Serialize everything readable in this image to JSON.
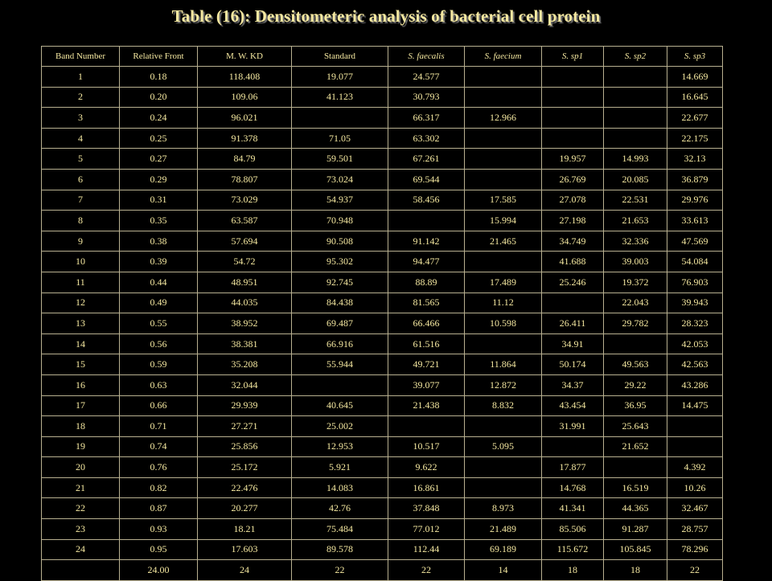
{
  "title": "Table (16): Densitometeric analysis of bacterial cell protein",
  "table": {
    "headers": [
      {
        "label": "Band Number",
        "italic": false
      },
      {
        "label": "Relative Front",
        "italic": false
      },
      {
        "label": "M. W. KD",
        "italic": false
      },
      {
        "label": "Standard",
        "italic": false
      },
      {
        "label": "S. faecalis",
        "italic": true
      },
      {
        "label": "S. faecium",
        "italic": true
      },
      {
        "label": "S. sp1",
        "italic": true
      },
      {
        "label": "S. sp2",
        "italic": true
      },
      {
        "label": "S. sp3",
        "italic": true
      }
    ],
    "rows": [
      [
        "1",
        "0.18",
        "118.408",
        "19.077",
        "24.577",
        "",
        "",
        "",
        "14.669"
      ],
      [
        "2",
        "0.20",
        "109.06",
        "41.123",
        "30.793",
        "",
        "",
        "",
        "16.645"
      ],
      [
        "3",
        "0.24",
        "96.021",
        "",
        "66.317",
        "12.966",
        "",
        "",
        "22.677"
      ],
      [
        "4",
        "0.25",
        "91.378",
        "71.05",
        "63.302",
        "",
        "",
        "",
        "22.175"
      ],
      [
        "5",
        "0.27",
        "84.79",
        "59.501",
        "67.261",
        "",
        "19.957",
        "14.993",
        "32.13"
      ],
      [
        "6",
        "0.29",
        "78.807",
        "73.024",
        "69.544",
        "",
        "26.769",
        "20.085",
        "36.879"
      ],
      [
        "7",
        "0.31",
        "73.029",
        "54.937",
        "58.456",
        "17.585",
        "27.078",
        "22.531",
        "29.976"
      ],
      [
        "8",
        "0.35",
        "63.587",
        "70.948",
        "",
        "15.994",
        "27.198",
        "21.653",
        "33.613"
      ],
      [
        "9",
        "0.38",
        "57.694",
        "90.508",
        "91.142",
        "21.465",
        "34.749",
        "32.336",
        "47.569"
      ],
      [
        "10",
        "0.39",
        "54.72",
        "95.302",
        "94.477",
        "",
        "41.688",
        "39.003",
        "54.084"
      ],
      [
        "11",
        "0.44",
        "48.951",
        "92.745",
        "88.89",
        "17.489",
        "25.246",
        "19.372",
        "76.903"
      ],
      [
        "12",
        "0.49",
        "44.035",
        "84.438",
        "81.565",
        "11.12",
        "",
        "22.043",
        "39.943"
      ],
      [
        "13",
        "0.55",
        "38.952",
        "69.487",
        "66.466",
        "10.598",
        "26.411",
        "29.782",
        "28.323"
      ],
      [
        "14",
        "0.56",
        "38.381",
        "66.916",
        "61.516",
        "",
        "34.91",
        "",
        "42.053"
      ],
      [
        "15",
        "0.59",
        "35.208",
        "55.944",
        "49.721",
        "11.864",
        "50.174",
        "49.563",
        "42.563"
      ],
      [
        "16",
        "0.63",
        "32.044",
        "",
        "39.077",
        "12.872",
        "34.37",
        "29.22",
        "43.286"
      ],
      [
        "17",
        "0.66",
        "29.939",
        "40.645",
        "21.438",
        "8.832",
        "43.454",
        "36.95",
        "14.475"
      ],
      [
        "18",
        "0.71",
        "27.271",
        "25.002",
        "",
        "",
        "31.991",
        "25.643",
        ""
      ],
      [
        "19",
        "0.74",
        "25.856",
        "12.953",
        "10.517",
        "5.095",
        "",
        "21.652",
        ""
      ],
      [
        "20",
        "0.76",
        "25.172",
        "5.921",
        "9.622",
        "",
        "17.877",
        "",
        "4.392"
      ],
      [
        "21",
        "0.82",
        "22.476",
        "14.083",
        "16.861",
        "",
        "14.768",
        "16.519",
        "10.26"
      ],
      [
        "22",
        "0.87",
        "20.277",
        "42.76",
        "37.848",
        "8.973",
        "41.341",
        "44.365",
        "32.467"
      ],
      [
        "23",
        "0.93",
        "18.21",
        "75.484",
        "77.012",
        "21.489",
        "85.506",
        "91.287",
        "28.757"
      ],
      [
        "24",
        "0.95",
        "17.603",
        "89.578",
        "112.44",
        "69.189",
        "115.672",
        "105.845",
        "78.296"
      ],
      [
        "",
        "24.00",
        "24",
        "22",
        "22",
        "14",
        "18",
        "18",
        "22"
      ]
    ]
  }
}
